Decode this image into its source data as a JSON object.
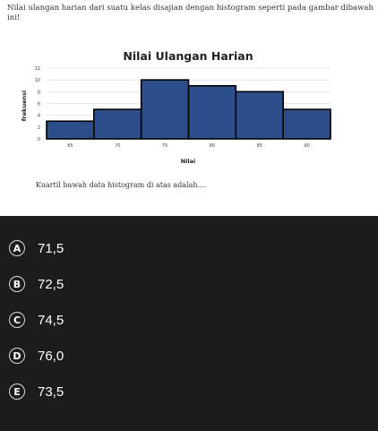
{
  "question": {
    "text": "Nilai ulangan harian dari suatu kelas disajian dengan histogram seperti pada gambar dibawah ini!",
    "footer": "Kuartil bawah data histogram di atas adalah...."
  },
  "chart_data": {
    "type": "bar",
    "title": "Nilai Ulangan Harian",
    "xlabel": "Nilai",
    "ylabel": "frekuensi",
    "categories": [
      "65",
      "70",
      "75",
      "80",
      "85",
      "90"
    ],
    "values": [
      3,
      5,
      10,
      9,
      8,
      5
    ],
    "yticks": [
      "0",
      "2",
      "4",
      "6",
      "8",
      "10",
      "12"
    ],
    "ylim": [
      0,
      12
    ],
    "grid": true,
    "bar_color": "#2c4f8c",
    "bar_outline": "#000000"
  },
  "options": [
    {
      "letter": "A",
      "text": "71,5"
    },
    {
      "letter": "B",
      "text": "72,5"
    },
    {
      "letter": "C",
      "text": "74,5"
    },
    {
      "letter": "D",
      "text": "76,0"
    },
    {
      "letter": "E",
      "text": "73,5"
    }
  ],
  "colors": {
    "background": "#1c1c1c",
    "card": "#ffffff",
    "option_text": "#ffffff",
    "badge_border": "#d9d9d9"
  }
}
